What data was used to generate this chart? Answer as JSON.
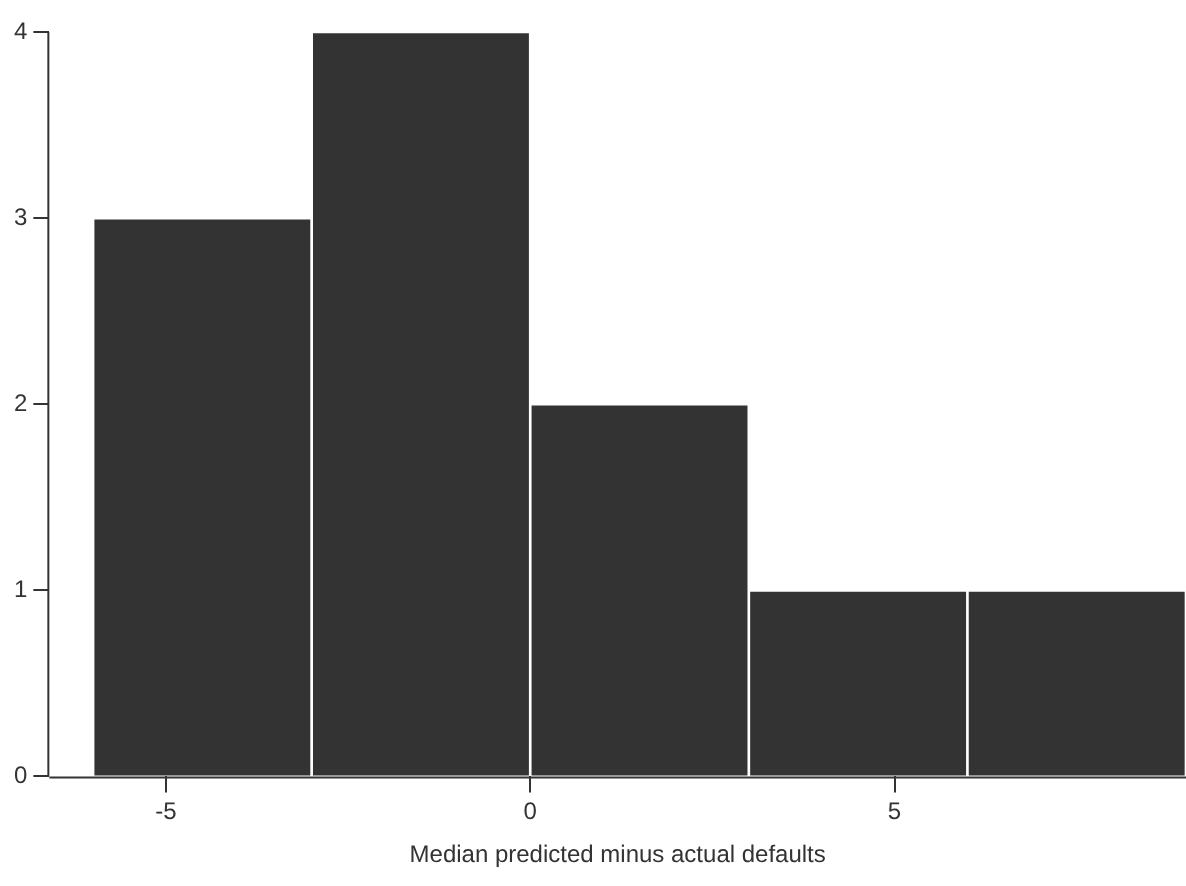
{
  "chart_data": {
    "type": "histogram",
    "xlabel": "Median predicted minus actual defaults",
    "bins": [
      -6,
      -3,
      0,
      3,
      6,
      9
    ],
    "values": [
      3,
      4,
      2,
      1,
      1
    ],
    "color": "#333333",
    "xlim": [
      -6.6,
      9
    ],
    "xticks": [
      -5,
      0,
      5
    ],
    "ylim": [
      0,
      4
    ],
    "yticks": [
      0,
      1,
      2,
      3,
      4
    ],
    "grid": false,
    "legend": false
  }
}
